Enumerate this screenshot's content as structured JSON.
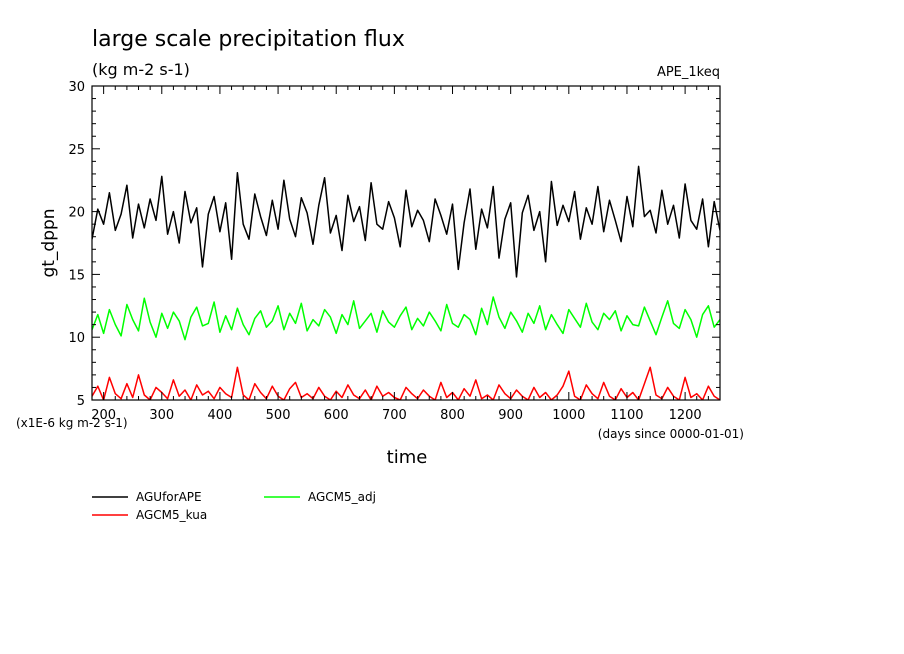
{
  "chart_data": {
    "type": "line",
    "title": "large scale precipitation flux",
    "subtitle": "(kg m-2 s-1)",
    "experiment_label": "APE_1keq",
    "xlabel": "time",
    "ylabel": "gt_dppn",
    "x_units": "(days since 0000-01-01)",
    "y_units": "(x1E-6 kg m-2 s-1)",
    "xlim": [
      180,
      1260
    ],
    "ylim": [
      5,
      30
    ],
    "x_ticks": [
      200,
      300,
      400,
      500,
      600,
      700,
      800,
      900,
      1000,
      1100,
      1200
    ],
    "y_ticks": [
      5,
      10,
      15,
      20,
      25,
      30
    ],
    "grid": false,
    "legend_position": "bottom-left",
    "series": [
      {
        "name": "AGUforAPE",
        "color": "#000000",
        "x": [
          180,
          190,
          200,
          210,
          220,
          230,
          240,
          250,
          260,
          270,
          280,
          290,
          300,
          310,
          320,
          330,
          340,
          350,
          360,
          370,
          380,
          390,
          400,
          410,
          420,
          430,
          440,
          450,
          460,
          470,
          480,
          490,
          500,
          510,
          520,
          530,
          540,
          550,
          560,
          570,
          580,
          590,
          600,
          610,
          620,
          630,
          640,
          650,
          660,
          670,
          680,
          690,
          700,
          710,
          720,
          730,
          740,
          750,
          760,
          770,
          780,
          790,
          800,
          810,
          820,
          830,
          840,
          850,
          860,
          870,
          880,
          890,
          900,
          910,
          920,
          930,
          940,
          950,
          960,
          970,
          980,
          990,
          1000,
          1010,
          1020,
          1030,
          1040,
          1050,
          1060,
          1070,
          1080,
          1090,
          1100,
          1110,
          1120,
          1130,
          1140,
          1150,
          1160,
          1170,
          1180,
          1190,
          1200,
          1210,
          1220,
          1230,
          1240,
          1250,
          1260
        ],
        "values": [
          17.8,
          20.2,
          19.0,
          21.5,
          18.5,
          19.8,
          22.1,
          17.9,
          20.6,
          18.7,
          21.0,
          19.3,
          22.8,
          18.2,
          20.0,
          17.5,
          21.6,
          19.1,
          20.3,
          15.6,
          19.8,
          21.2,
          18.4,
          20.7,
          16.2,
          23.1,
          19.0,
          17.8,
          21.4,
          19.6,
          18.1,
          20.9,
          18.6,
          22.5,
          19.4,
          18.0,
          21.1,
          19.9,
          17.4,
          20.5,
          22.7,
          18.3,
          19.7,
          16.9,
          21.3,
          19.2,
          20.4,
          17.7,
          22.3,
          19.0,
          18.6,
          20.8,
          19.5,
          17.2,
          21.7,
          18.8,
          20.1,
          19.3,
          17.6,
          21.0,
          19.7,
          18.2,
          20.6,
          15.4,
          19.1,
          21.8,
          17.0,
          20.2,
          18.7,
          22.0,
          16.3,
          19.4,
          20.7,
          14.8,
          19.9,
          21.3,
          18.5,
          20.0,
          16.0,
          22.4,
          18.9,
          20.5,
          19.2,
          21.6,
          17.8,
          20.3,
          19.0,
          22.0,
          18.4,
          20.9,
          19.3,
          17.6,
          21.2,
          18.8,
          23.6,
          19.6,
          20.1,
          18.3,
          21.7,
          19.0,
          20.5,
          17.9,
          22.2,
          19.3,
          18.6,
          21.0,
          17.2,
          20.8,
          18.5
        ]
      },
      {
        "name": "AGCM5_adj",
        "color": "#00ff00",
        "x": [
          180,
          190,
          200,
          210,
          220,
          230,
          240,
          250,
          260,
          270,
          280,
          290,
          300,
          310,
          320,
          330,
          340,
          350,
          360,
          370,
          380,
          390,
          400,
          410,
          420,
          430,
          440,
          450,
          460,
          470,
          480,
          490,
          500,
          510,
          520,
          530,
          540,
          550,
          560,
          570,
          580,
          590,
          600,
          610,
          620,
          630,
          640,
          650,
          660,
          670,
          680,
          690,
          700,
          710,
          720,
          730,
          740,
          750,
          760,
          770,
          780,
          790,
          800,
          810,
          820,
          830,
          840,
          850,
          860,
          870,
          880,
          890,
          900,
          910,
          920,
          930,
          940,
          950,
          960,
          970,
          980,
          990,
          1000,
          1010,
          1020,
          1030,
          1040,
          1050,
          1060,
          1070,
          1080,
          1090,
          1100,
          1110,
          1120,
          1130,
          1140,
          1150,
          1160,
          1170,
          1180,
          1190,
          1200,
          1210,
          1220,
          1230,
          1240,
          1250,
          1260
        ],
        "values": [
          10.6,
          11.8,
          10.3,
          12.2,
          11.0,
          10.1,
          12.6,
          11.4,
          10.5,
          13.1,
          11.2,
          10.0,
          11.9,
          10.7,
          12.0,
          11.3,
          9.8,
          11.6,
          12.4,
          10.9,
          11.1,
          12.8,
          10.4,
          11.7,
          10.6,
          12.3,
          11.0,
          10.2,
          11.5,
          12.1,
          10.8,
          11.3,
          12.5,
          10.6,
          11.9,
          11.1,
          12.7,
          10.5,
          11.4,
          10.9,
          12.2,
          11.6,
          10.3,
          11.8,
          11.0,
          12.9,
          10.7,
          11.3,
          11.9,
          10.4,
          12.1,
          11.2,
          10.8,
          11.7,
          12.4,
          10.6,
          11.5,
          10.9,
          12.0,
          11.3,
          10.5,
          12.6,
          11.1,
          10.8,
          11.8,
          11.4,
          10.2,
          12.3,
          11.0,
          13.2,
          11.6,
          10.7,
          12.0,
          11.3,
          10.4,
          11.9,
          11.1,
          12.5,
          10.6,
          11.8,
          11.0,
          10.3,
          12.2,
          11.5,
          10.8,
          12.7,
          11.2,
          10.6,
          11.9,
          11.4,
          12.1,
          10.5,
          11.7,
          11.0,
          10.9,
          12.4,
          11.3,
          10.2,
          11.6,
          12.9,
          11.1,
          10.7,
          12.2,
          11.4,
          10.0,
          11.8,
          12.5,
          10.8,
          11.4
        ]
      },
      {
        "name": "AGCM5_kua",
        "color": "#ff0000",
        "x": [
          180,
          190,
          200,
          210,
          220,
          230,
          240,
          250,
          260,
          270,
          280,
          290,
          300,
          310,
          320,
          330,
          340,
          350,
          360,
          370,
          380,
          390,
          400,
          410,
          420,
          430,
          440,
          450,
          460,
          470,
          480,
          490,
          500,
          510,
          520,
          530,
          540,
          550,
          560,
          570,
          580,
          590,
          600,
          610,
          620,
          630,
          640,
          650,
          660,
          670,
          680,
          690,
          700,
          710,
          720,
          730,
          740,
          750,
          760,
          770,
          780,
          790,
          800,
          810,
          820,
          830,
          840,
          850,
          860,
          870,
          880,
          890,
          900,
          910,
          920,
          930,
          940,
          950,
          960,
          970,
          980,
          990,
          1000,
          1010,
          1020,
          1030,
          1040,
          1050,
          1060,
          1070,
          1080,
          1090,
          1100,
          1110,
          1120,
          1130,
          1140,
          1150,
          1160,
          1170,
          1180,
          1190,
          1200,
          1210,
          1220,
          1230,
          1240,
          1250,
          1260
        ],
        "values": [
          5.3,
          6.1,
          5.0,
          6.8,
          5.5,
          5.1,
          6.3,
          5.2,
          7.0,
          5.4,
          5.0,
          6.0,
          5.6,
          5.1,
          6.6,
          5.3,
          5.8,
          5.0,
          6.2,
          5.4,
          5.7,
          5.1,
          6.0,
          5.5,
          5.2,
          7.6,
          5.4,
          5.0,
          6.3,
          5.6,
          5.1,
          6.1,
          5.3,
          5.0,
          5.9,
          6.4,
          5.2,
          5.5,
          5.1,
          6.0,
          5.3,
          5.0,
          5.7,
          5.2,
          6.2,
          5.4,
          5.1,
          5.8,
          5.0,
          6.1,
          5.3,
          5.6,
          5.2,
          5.0,
          6.0,
          5.5,
          5.1,
          5.8,
          5.3,
          5.0,
          6.4,
          5.2,
          5.6,
          5.0,
          5.9,
          5.3,
          6.6,
          5.1,
          5.4,
          5.0,
          6.2,
          5.5,
          5.1,
          5.8,
          5.3,
          5.0,
          6.0,
          5.2,
          5.6,
          5.0,
          5.4,
          6.1,
          7.3,
          5.3,
          5.0,
          6.2,
          5.5,
          5.1,
          6.4,
          5.3,
          5.0,
          5.9,
          5.2,
          5.6,
          5.0,
          6.3,
          7.6,
          5.4,
          5.1,
          6.0,
          5.3,
          5.0,
          6.8,
          5.2,
          5.5,
          5.0,
          6.1,
          5.3,
          5.0
        ]
      }
    ]
  }
}
